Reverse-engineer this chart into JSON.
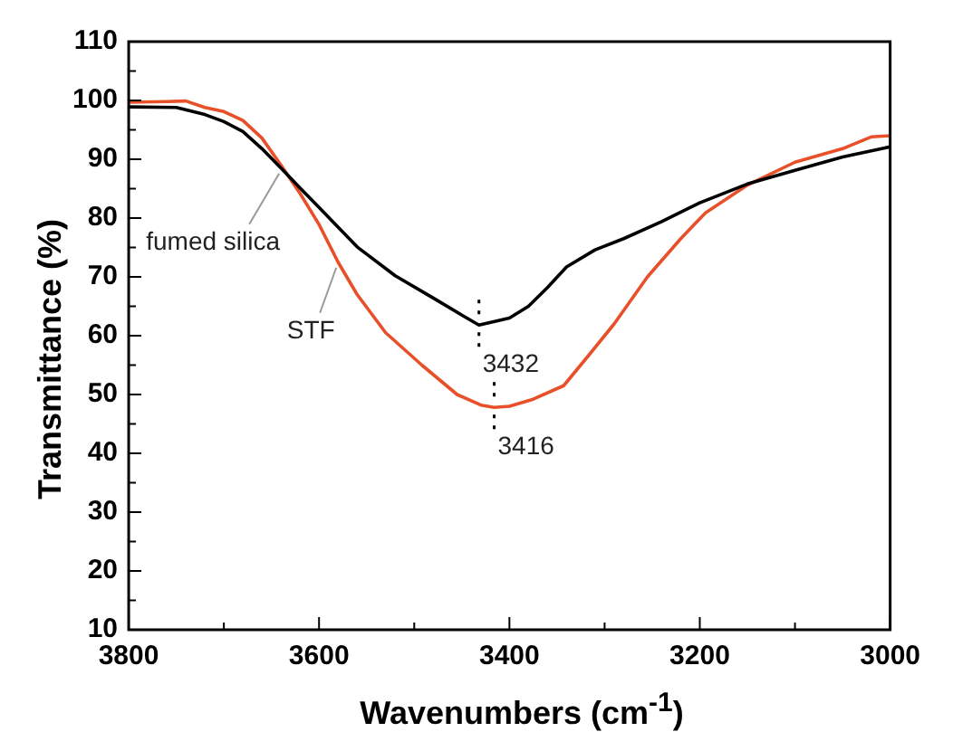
{
  "chart_data": {
    "type": "line",
    "xlabel": "Wavenumbers (cm$^{-1}$)",
    "ylabel": "Transmittance (%)",
    "xlim": [
      3800,
      3000
    ],
    "xticks": [
      3800,
      {
        "value": 3700,
        "label": null
      },
      3600,
      {
        "value": 3500,
        "label": null
      },
      3400,
      {
        "value": 3300,
        "label": null
      },
      3200,
      {
        "value": 3100,
        "label": null
      },
      3000
    ],
    "ylim": [
      10,
      110
    ],
    "yticks": [
      10,
      {
        "value": 15,
        "label": null
      },
      20,
      {
        "value": 25,
        "label": null
      },
      30,
      {
        "value": 35,
        "label": null
      },
      40,
      {
        "value": 45,
        "label": null
      },
      50,
      {
        "value": 55,
        "label": null
      },
      60,
      {
        "value": 65,
        "label": null
      },
      70,
      {
        "value": 75,
        "label": null
      },
      80,
      {
        "value": 85,
        "label": null
      },
      90,
      {
        "value": 95,
        "label": null
      },
      100,
      {
        "value": 105,
        "label": null
      },
      110
    ],
    "grid": false,
    "legend": false,
    "marker": "none",
    "line_style": "solid",
    "series": [
      {
        "name": "fumed silica",
        "color": "#000000",
        "x": [
          3800,
          3750,
          3720,
          3700,
          3680,
          3660,
          3640,
          3620,
          3600,
          3560,
          3520,
          3480,
          3450,
          3432,
          3400,
          3380,
          3360,
          3340,
          3310,
          3280,
          3240,
          3200,
          3150,
          3100,
          3050,
          3000
        ],
        "values": [
          98.9,
          98.8,
          97.6,
          96.4,
          94.7,
          91.8,
          88.5,
          85.1,
          81.8,
          75.1,
          70.2,
          66.4,
          63.5,
          61.8,
          63.0,
          65.0,
          68.2,
          71.7,
          74.6,
          76.5,
          79.4,
          82.6,
          85.8,
          88.1,
          90.4,
          92.1
        ]
      },
      {
        "name": "STF",
        "color": "#e8502a",
        "x": [
          3800,
          3760,
          3740,
          3720,
          3700,
          3680,
          3660,
          3640,
          3620,
          3600,
          3580,
          3560,
          3530,
          3492,
          3455,
          3430,
          3416,
          3400,
          3375,
          3343,
          3315,
          3290,
          3255,
          3220,
          3194,
          3150,
          3100,
          3050,
          3020,
          3000
        ],
        "values": [
          99.7,
          99.8,
          99.9,
          98.8,
          98.1,
          96.6,
          93.6,
          89.0,
          84.2,
          78.9,
          72.5,
          67.0,
          60.5,
          55.0,
          50.0,
          48.2,
          47.8,
          48.0,
          49.2,
          51.5,
          57.0,
          62.0,
          70.0,
          76.5,
          80.9,
          85.6,
          89.5,
          91.8,
          93.8,
          94.0
        ]
      }
    ],
    "annotations": [
      {
        "text": "3432",
        "x": 3432,
        "y": 61.8
      },
      {
        "text": "3416",
        "x": 3416,
        "y": 47.8
      }
    ]
  }
}
